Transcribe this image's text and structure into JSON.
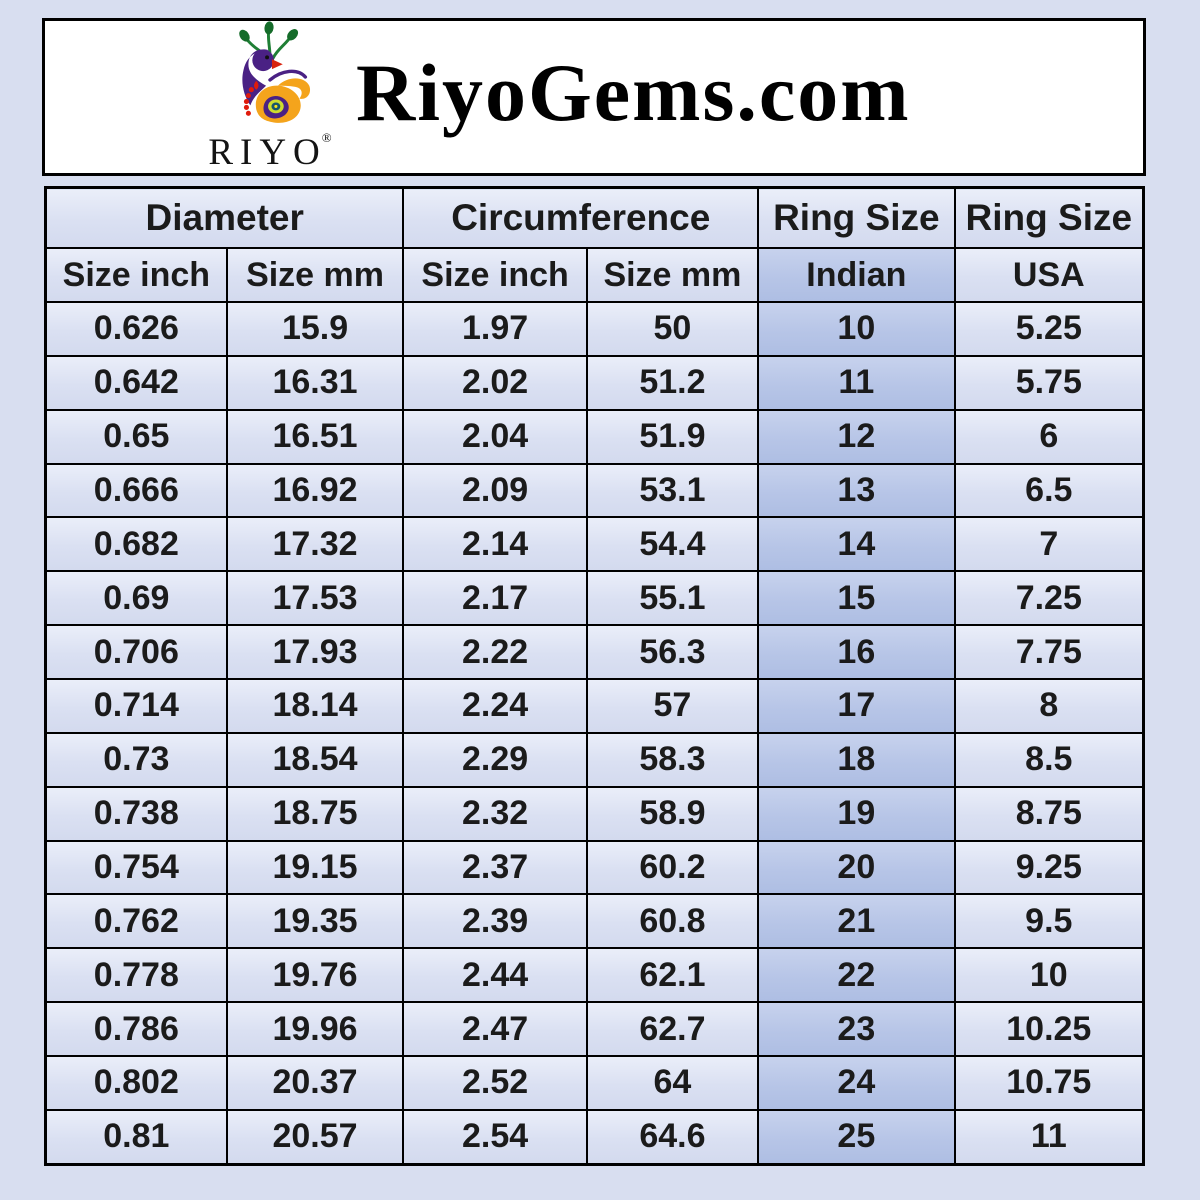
{
  "page": {
    "background_color": "#d8def0",
    "border_color": "#000000",
    "cell_color": "#dae0f2",
    "highlight_color": "#b7c5e7"
  },
  "header": {
    "site_title": "RiyoGems.com",
    "logo": {
      "text": "RIYO",
      "registered_mark": "®",
      "icon": "peacock-icon",
      "colors": {
        "purple": "#4a2184",
        "green": "#1f7f35",
        "dark_green": "#156c2a",
        "orange": "#f4a41c",
        "red": "#e01b0c"
      }
    }
  },
  "table": {
    "group_headers": [
      {
        "label": "Diameter",
        "span": 2
      },
      {
        "label": "Circumference",
        "span": 2
      },
      {
        "label": "Ring Size",
        "span": 1
      },
      {
        "label": "Ring Size",
        "span": 1
      }
    ],
    "column_headers": [
      "Size inch",
      "Size mm",
      "Size inch",
      "Size mm",
      "Indian",
      "USA"
    ],
    "column_keys": [
      "diameter-inch",
      "diameter-mm",
      "circumference-inch",
      "circumference-mm",
      "ring-size-indian",
      "ring-size-usa"
    ],
    "highlight_column_index": 4
  },
  "chart_data": {
    "type": "table",
    "title": "RiyoGems.com",
    "columns": [
      "Diameter Size inch",
      "Diameter Size mm",
      "Circumference Size inch",
      "Circumference Size mm",
      "Ring Size Indian",
      "Ring Size USA"
    ],
    "rows": [
      [
        "0.626",
        "15.9",
        "1.97",
        "50",
        "10",
        "5.25"
      ],
      [
        "0.642",
        "16.31",
        "2.02",
        "51.2",
        "11",
        "5.75"
      ],
      [
        "0.65",
        "16.51",
        "2.04",
        "51.9",
        "12",
        "6"
      ],
      [
        "0.666",
        "16.92",
        "2.09",
        "53.1",
        "13",
        "6.5"
      ],
      [
        "0.682",
        "17.32",
        "2.14",
        "54.4",
        "14",
        "7"
      ],
      [
        "0.69",
        "17.53",
        "2.17",
        "55.1",
        "15",
        "7.25"
      ],
      [
        "0.706",
        "17.93",
        "2.22",
        "56.3",
        "16",
        "7.75"
      ],
      [
        "0.714",
        "18.14",
        "2.24",
        "57",
        "17",
        "8"
      ],
      [
        "0.73",
        "18.54",
        "2.29",
        "58.3",
        "18",
        "8.5"
      ],
      [
        "0.738",
        "18.75",
        "2.32",
        "58.9",
        "19",
        "8.75"
      ],
      [
        "0.754",
        "19.15",
        "2.37",
        "60.2",
        "20",
        "9.25"
      ],
      [
        "0.762",
        "19.35",
        "2.39",
        "60.8",
        "21",
        "9.5"
      ],
      [
        "0.778",
        "19.76",
        "2.44",
        "62.1",
        "22",
        "10"
      ],
      [
        "0.786",
        "19.96",
        "2.47",
        "62.7",
        "23",
        "10.25"
      ],
      [
        "0.802",
        "20.37",
        "2.52",
        "64",
        "24",
        "10.75"
      ],
      [
        "0.81",
        "20.57",
        "2.54",
        "64.6",
        "25",
        "11"
      ]
    ]
  }
}
